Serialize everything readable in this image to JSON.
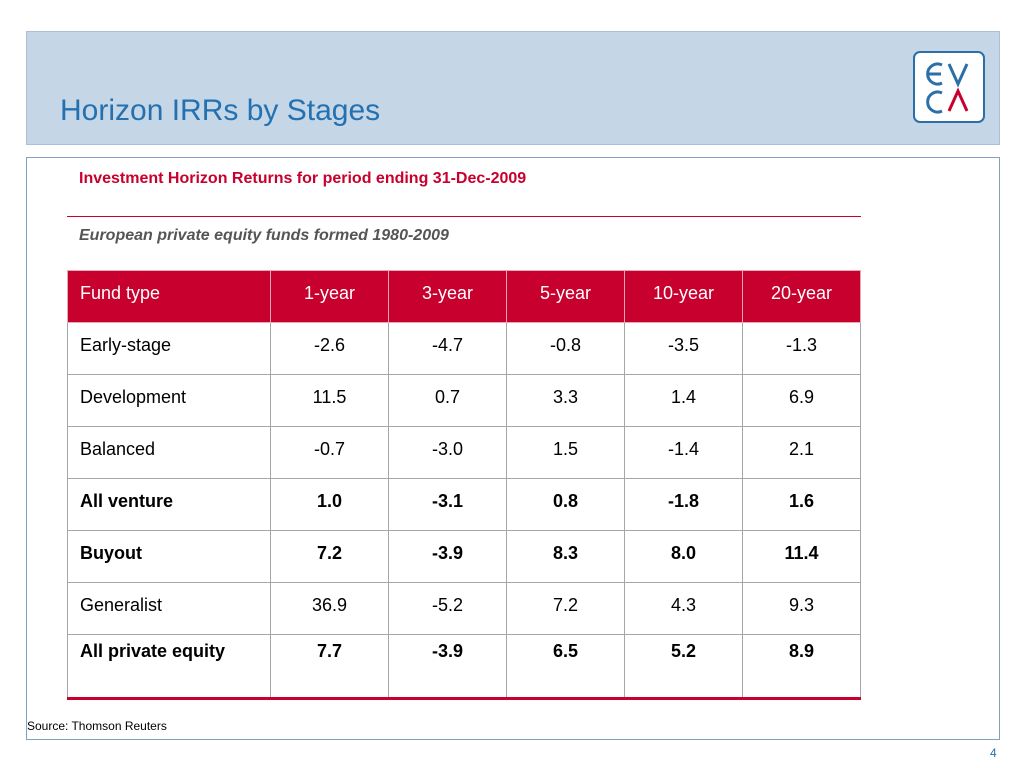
{
  "slide": {
    "title": "Horizon IRRs by Stages",
    "page_number": "4",
    "source": "Source: Thomson Reuters"
  },
  "logo": {
    "icon": "evca-logo-icon",
    "line1": "EV",
    "line2": "CA",
    "color": "#2a6fa8"
  },
  "table": {
    "title": "Investment Horizon Returns for period ending 31-Dec-2009",
    "subtitle": "European private equity funds formed 1980-2009",
    "headers": [
      "Fund type",
      "1-year",
      "3-year",
      "5-year",
      "10-year",
      "20-year"
    ],
    "rows": [
      {
        "type": "Early-stage",
        "values": [
          "-2.6",
          "-4.7",
          "-0.8",
          "-3.5",
          "-1.3"
        ],
        "bold": false
      },
      {
        "type": "Development",
        "values": [
          "11.5",
          "0.7",
          "3.3",
          "1.4",
          "6.9"
        ],
        "bold": false
      },
      {
        "type": "Balanced",
        "values": [
          "-0.7",
          "-3.0",
          "1.5",
          "-1.4",
          "2.1"
        ],
        "bold": false
      },
      {
        "type": "All venture",
        "values": [
          "1.0",
          "-3.1",
          "0.8",
          "-1.8",
          "1.6"
        ],
        "bold": true
      },
      {
        "type": "Buyout",
        "values": [
          "7.2",
          "-3.9",
          "8.3",
          "8.0",
          "11.4"
        ],
        "bold": true
      },
      {
        "type": "Generalist",
        "values": [
          "36.9",
          "-5.2",
          "7.2",
          "4.3",
          "9.3"
        ],
        "bold": false
      },
      {
        "type": "All private equity",
        "values": [
          "7.7",
          "-3.9",
          "6.5",
          "5.2",
          "8.9"
        ],
        "bold": true
      }
    ]
  },
  "colors": {
    "title_blue": "#2371b1",
    "header_band": "#c5d6e7",
    "accent_red": "#c8002d"
  }
}
